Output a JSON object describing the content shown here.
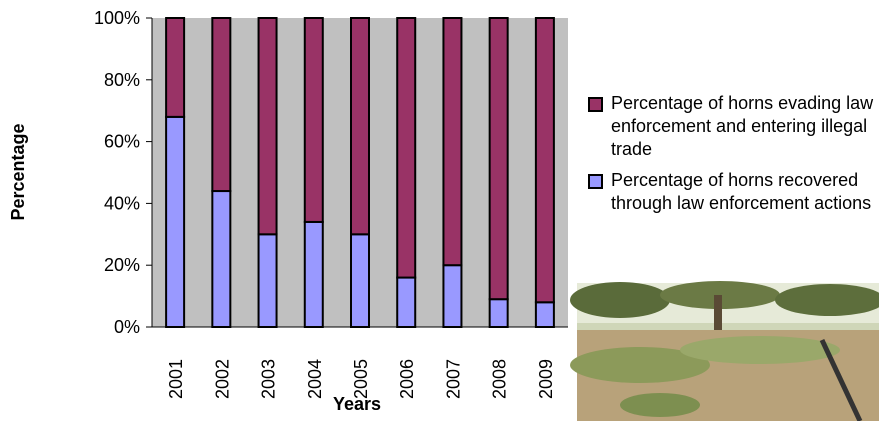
{
  "chart_data": {
    "type": "stacked_bar",
    "x_label": "Years",
    "y_label": "Percentage",
    "categories": [
      "2001",
      "2002",
      "2003",
      "2004",
      "2005",
      "2006",
      "2007",
      "2008",
      "2009"
    ],
    "series": [
      {
        "name": "Percentage of horns evading law enforcement and entering illegal trade",
        "color": "#993366",
        "values": [
          32,
          56,
          70,
          66,
          70,
          84,
          80,
          91,
          92
        ]
      },
      {
        "name": "Percentage of horns recovered through law enforcement actions",
        "color": "#9999ff",
        "values": [
          68,
          44,
          30,
          34,
          30,
          16,
          20,
          9,
          8
        ]
      }
    ],
    "ylim": [
      0,
      100
    ],
    "yticks": [
      {
        "value": 0,
        "label": "0%"
      },
      {
        "value": 20,
        "label": "20%"
      },
      {
        "value": 40,
        "label": "40%"
      },
      {
        "value": 60,
        "label": "60%"
      },
      {
        "value": 80,
        "label": "80%"
      },
      {
        "value": 100,
        "label": "100%"
      }
    ],
    "plot_background": "#c0c0c0"
  }
}
